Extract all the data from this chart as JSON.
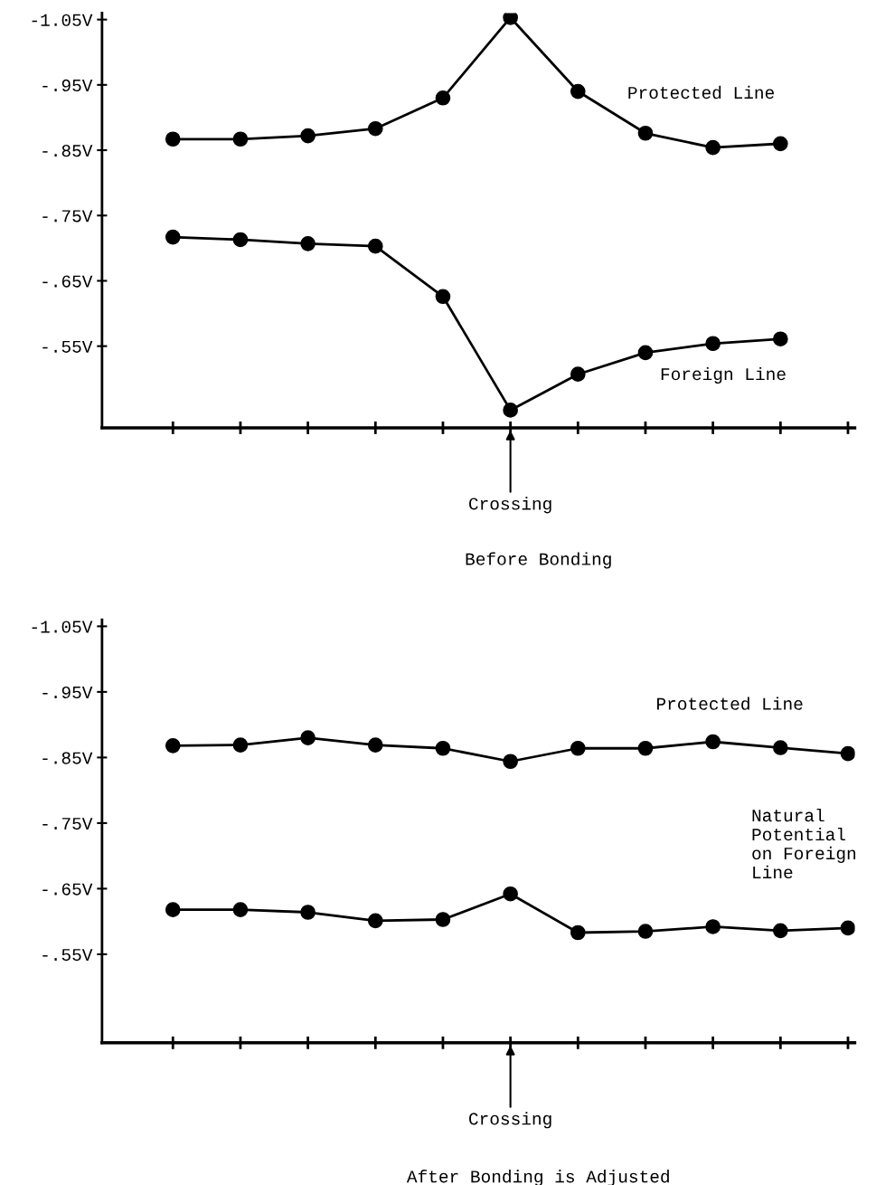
{
  "chart_data": [
    {
      "type": "line",
      "title": "Before Bonding",
      "marker": "circle",
      "line_style": "solid",
      "legend": "right",
      "tick_labels": "y",
      "categories": [
        null,
        null,
        null,
        null,
        null,
        null,
        null,
        null,
        null,
        null,
        null
      ],
      "ylim": [
        -0.425,
        -1.06
      ],
      "yticks": [
        {
          "value": -1.05,
          "label": "-1.05V"
        },
        {
          "value": -0.95,
          "label": "-.95V"
        },
        {
          "value": -0.85,
          "label": "-.85V"
        },
        {
          "value": -0.75,
          "label": "-.75V"
        },
        {
          "value": -0.65,
          "label": "-.65V"
        },
        {
          "value": -0.55,
          "label": "-.55V"
        }
      ],
      "series": [
        {
          "name": "Protected Line",
          "color": "#000000",
          "values": [
            -0.867,
            -0.867,
            -0.872,
            -0.883,
            -0.93,
            -1.053,
            -0.94,
            -0.876,
            -0.854,
            -0.86,
            null
          ]
        },
        {
          "name": "Foreign Line",
          "color": "#000000",
          "values": [
            -0.717,
            -0.713,
            -0.707,
            -0.703,
            -0.626,
            -0.452,
            -0.507,
            -0.54,
            -0.554,
            -0.561,
            null
          ]
        }
      ],
      "annotations": [
        "Crossing"
      ]
    },
    {
      "type": "line",
      "title": "After Bonding is Adjusted",
      "marker": "circle",
      "line_style": "solid",
      "legend": "right",
      "tick_labels": "y",
      "categories": [
        null,
        null,
        null,
        null,
        null,
        null,
        null,
        null,
        null,
        null,
        null
      ],
      "ylim": [
        -0.415,
        -1.06
      ],
      "yticks": [
        {
          "value": -1.05,
          "label": "-1.05V"
        },
        {
          "value": -0.95,
          "label": "-.95V"
        },
        {
          "value": -0.85,
          "label": "-.85V"
        },
        {
          "value": -0.75,
          "label": "-.75V"
        },
        {
          "value": -0.65,
          "label": "-.65V"
        },
        {
          "value": -0.55,
          "label": "-.55V"
        }
      ],
      "series": [
        {
          "name": "Protected Line",
          "color": "#000000",
          "values": [
            -0.868,
            -0.869,
            -0.88,
            -0.869,
            -0.864,
            -0.844,
            -0.864,
            -0.864,
            -0.874,
            -0.865,
            -0.856
          ]
        },
        {
          "name": "Natural\nPotential\non Foreign\nLine",
          "color": "#000000",
          "values": [
            -0.618,
            -0.618,
            -0.614,
            -0.601,
            -0.603,
            -0.642,
            -0.583,
            -0.585,
            -0.592,
            -0.586,
            -0.59
          ]
        }
      ],
      "annotations": [
        "Crossing"
      ]
    }
  ]
}
